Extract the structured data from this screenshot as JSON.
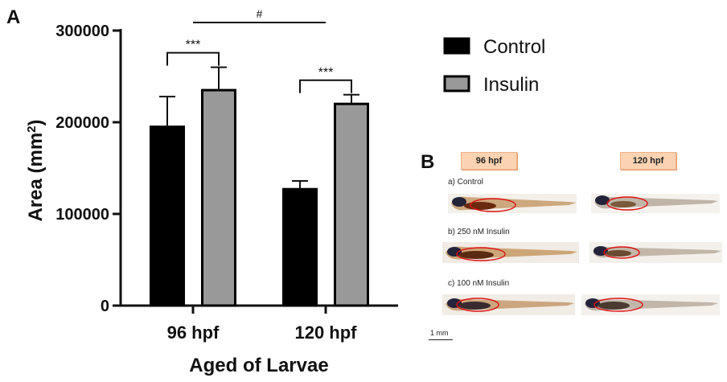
{
  "panels": {
    "a": "A",
    "b": "B"
  },
  "chart_data": {
    "type": "bar",
    "categories": [
      "96 hpf",
      "120 hpf"
    ],
    "series": [
      {
        "name": "Control",
        "color": "#000000",
        "values": [
          195000,
          127000
        ],
        "errors": [
          33000,
          9000
        ]
      },
      {
        "name": "Insulin",
        "color": "#999999",
        "values": [
          235000,
          220000
        ],
        "errors": [
          25000,
          10000
        ]
      }
    ],
    "xlabel": "Aged of Larvae",
    "ylabel": "Area (mm²)",
    "ylim": [
      0,
      300000
    ],
    "yticks": [
      0,
      100000,
      200000,
      300000
    ],
    "significance": [
      {
        "label": "***",
        "category": "96 hpf"
      },
      {
        "label": "***",
        "category": "120 hpf"
      },
      {
        "label": "#",
        "between": [
          "96 hpf",
          "120 hpf"
        ]
      }
    ],
    "legend": {
      "position": "right",
      "items": [
        "Control",
        "Insulin"
      ]
    }
  },
  "panel_b": {
    "columns": [
      "96 hpf",
      "120 hpf"
    ],
    "rows": [
      "a) Control",
      "b) 250 nM Insulin",
      "c) 100 nM Insulin"
    ],
    "scale_bar": "1 mm"
  }
}
